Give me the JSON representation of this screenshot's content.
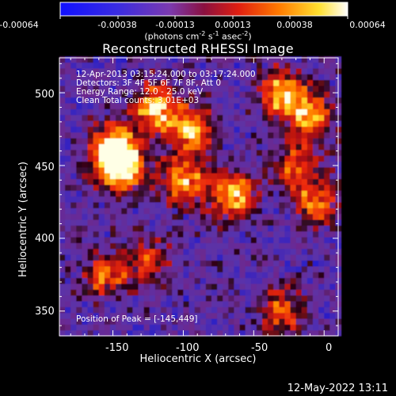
{
  "colorbar": {
    "tick_labels": [
      "-0.00064",
      "-0.00038",
      "-0.00013",
      "0.00013",
      "0.00038",
      "0.00064"
    ],
    "units_text": "(photons cm",
    "units_sup1": "-2",
    "units_mid": " s",
    "units_sup2": "-1",
    "units_end": " asec",
    "units_sup3": "-2",
    "units_close": ")"
  },
  "chart_data": {
    "type": "heatmap",
    "title": "Reconstructed RHESSI Image",
    "xlabel": "Heliocentric X (arcsec)",
    "ylabel": "Heliocentric Y (arcsec)",
    "xlim": [
      -188,
      10
    ],
    "ylim": [
      333,
      524
    ],
    "x_ticks": [
      -150,
      -100,
      -50,
      0
    ],
    "y_ticks": [
      350,
      400,
      450,
      500
    ],
    "color_range": [
      -0.00064,
      0.00064
    ],
    "colormap": "blue-purple-red-yellow-white",
    "peak_position": [
      -145,
      449
    ],
    "bright_regions": [
      {
        "x": -145,
        "y": 449,
        "level": 1.0
      },
      {
        "x": -150,
        "y": 463,
        "level": 0.85
      },
      {
        "x": -120,
        "y": 490,
        "level": 0.85
      },
      {
        "x": -95,
        "y": 475,
        "level": 0.75
      },
      {
        "x": -65,
        "y": 430,
        "level": 0.8
      },
      {
        "x": -100,
        "y": 440,
        "level": 0.75
      },
      {
        "x": -30,
        "y": 500,
        "level": 0.8
      },
      {
        "x": -10,
        "y": 485,
        "level": 0.75
      },
      {
        "x": -20,
        "y": 450,
        "level": 0.55
      },
      {
        "x": -5,
        "y": 425,
        "level": 0.6
      },
      {
        "x": -155,
        "y": 375,
        "level": 0.55
      },
      {
        "x": -125,
        "y": 385,
        "level": 0.5
      },
      {
        "x": -30,
        "y": 350,
        "level": 0.55
      }
    ]
  },
  "info": {
    "line1": "12-Apr-2013 03:15:24.000 to 03:17:24.000",
    "line2": "Detectors: 3F 4F 5F 6F 7F 8F, Att 0",
    "line3": "Energy Range: 12.0 - 25.0 keV",
    "line4": "Clean     Total counts: 3.01E+03",
    "peak_text": "Position of Peak = [-145,449]"
  },
  "footer": {
    "date": "12-May-2022 13:11"
  }
}
